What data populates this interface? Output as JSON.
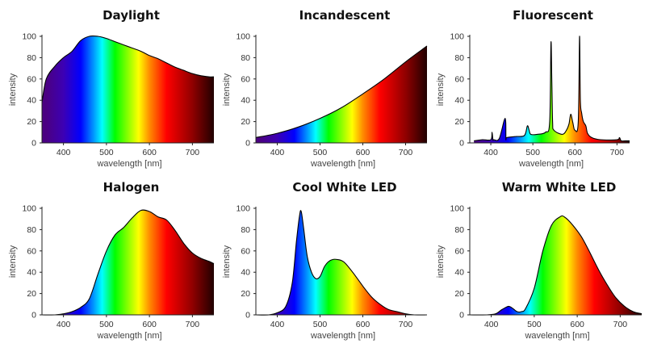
{
  "figure": {
    "colors": {
      "spectrum_violet": "#4b0082",
      "spectrum_blue": "#0000ff",
      "spectrum_green": "#00ff00",
      "spectrum_yellow": "#ffff00",
      "spectrum_red": "#ff0000",
      "spectrum_dark_red": "#200000",
      "outline": "#000000"
    }
  },
  "chart_data": [
    {
      "type": "area",
      "title": "Daylight",
      "xlabel": "wavelength [nm]",
      "ylabel": "intensity",
      "xlim": [
        350,
        750
      ],
      "ylim": [
        0,
        100
      ],
      "xticks": [
        400,
        500,
        600,
        700
      ],
      "yticks": [
        0,
        20,
        40,
        60,
        80,
        100
      ],
      "grid": false,
      "x": [
        350,
        360,
        380,
        400,
        420,
        440,
        460,
        480,
        500,
        520,
        540,
        560,
        580,
        600,
        620,
        640,
        660,
        680,
        700,
        720,
        740,
        750
      ],
      "y": [
        38,
        60,
        72,
        80,
        86,
        96,
        100,
        100,
        98,
        95,
        92,
        89,
        86,
        82,
        79,
        75,
        71,
        68,
        65,
        63,
        62,
        62
      ]
    },
    {
      "type": "area",
      "title": "Incandescent",
      "xlabel": "wavelength [nm]",
      "ylabel": "intensity",
      "xlim": [
        350,
        750
      ],
      "ylim": [
        0,
        100
      ],
      "xticks": [
        400,
        500,
        600,
        700
      ],
      "yticks": [
        0,
        20,
        40,
        60,
        80,
        100
      ],
      "grid": false,
      "x": [
        350,
        400,
        450,
        500,
        550,
        600,
        650,
        700,
        740,
        750
      ],
      "y": [
        5,
        9,
        15,
        23,
        33,
        46,
        60,
        76,
        88,
        91
      ]
    },
    {
      "type": "area",
      "title": "Fluorescent",
      "xlabel": "wavelength [nm]",
      "ylabel": "intensity",
      "xlim": [
        350,
        730
      ],
      "ylim": [
        0,
        100
      ],
      "xticks": [
        400,
        500,
        600,
        700
      ],
      "yticks": [
        0,
        20,
        40,
        60,
        80,
        100
      ],
      "grid": false,
      "x": [
        360,
        380,
        400,
        403,
        405,
        407,
        420,
        434,
        436,
        438,
        460,
        480,
        487,
        491,
        495,
        510,
        530,
        540,
        543,
        545,
        547,
        550,
        570,
        580,
        586,
        590,
        595,
        600,
        608,
        611,
        613,
        616,
        620,
        626,
        630,
        640,
        660,
        700,
        706,
        710,
        720,
        730
      ],
      "y": [
        2,
        3,
        3,
        10,
        3,
        3,
        4,
        23,
        4,
        5,
        6,
        7,
        16,
        12,
        8,
        8,
        10,
        20,
        94,
        60,
        20,
        12,
        8,
        12,
        18,
        27,
        19,
        12,
        20,
        100,
        40,
        28,
        20,
        16,
        9,
        5,
        3,
        3,
        5,
        2,
        2,
        2
      ]
    },
    {
      "type": "area",
      "title": "Halogen",
      "xlabel": "wavelength [nm]",
      "ylabel": "intensity",
      "xlim": [
        350,
        750
      ],
      "ylim": [
        0,
        100
      ],
      "xticks": [
        400,
        500,
        600,
        700
      ],
      "yticks": [
        0,
        20,
        40,
        60,
        80,
        100
      ],
      "grid": false,
      "x": [
        350,
        380,
        400,
        420,
        440,
        460,
        480,
        500,
        520,
        540,
        560,
        580,
        600,
        620,
        640,
        660,
        680,
        700,
        720,
        740,
        750
      ],
      "y": [
        0,
        0,
        1,
        3,
        7,
        15,
        38,
        60,
        75,
        82,
        91,
        98,
        97,
        92,
        89,
        79,
        67,
        58,
        53,
        50,
        48
      ]
    },
    {
      "type": "area",
      "title": "Cool White LED",
      "xlabel": "wavelength [nm]",
      "ylabel": "intensity",
      "xlim": [
        350,
        750
      ],
      "ylim": [
        0,
        100
      ],
      "xticks": [
        400,
        500,
        600,
        700
      ],
      "yticks": [
        0,
        20,
        40,
        60,
        80,
        100
      ],
      "grid": false,
      "x": [
        350,
        380,
        400,
        420,
        435,
        445,
        452,
        456,
        462,
        470,
        480,
        490,
        500,
        510,
        520,
        530,
        540,
        550,
        560,
        580,
        600,
        620,
        640,
        660,
        680,
        700,
        720,
        750
      ],
      "y": [
        0,
        0,
        2,
        8,
        30,
        70,
        93,
        97,
        80,
        55,
        40,
        34,
        36,
        45,
        50,
        52,
        52,
        51,
        48,
        38,
        27,
        17,
        10,
        5,
        3,
        1,
        0,
        0
      ]
    },
    {
      "type": "area",
      "title": "Warm White LED",
      "xlabel": "wavelength [nm]",
      "ylabel": "intensity",
      "xlim": [
        350,
        750
      ],
      "ylim": [
        0,
        100
      ],
      "xticks": [
        400,
        500,
        600,
        700
      ],
      "yticks": [
        0,
        20,
        40,
        60,
        80,
        100
      ],
      "grid": false,
      "x": [
        350,
        390,
        410,
        425,
        440,
        450,
        460,
        470,
        480,
        500,
        520,
        540,
        560,
        570,
        590,
        610,
        630,
        650,
        670,
        690,
        710,
        730,
        750
      ],
      "y": [
        0,
        0,
        1,
        5,
        8,
        6,
        3,
        3,
        6,
        25,
        60,
        84,
        92,
        92,
        84,
        73,
        58,
        42,
        28,
        16,
        8,
        3,
        1
      ]
    }
  ]
}
